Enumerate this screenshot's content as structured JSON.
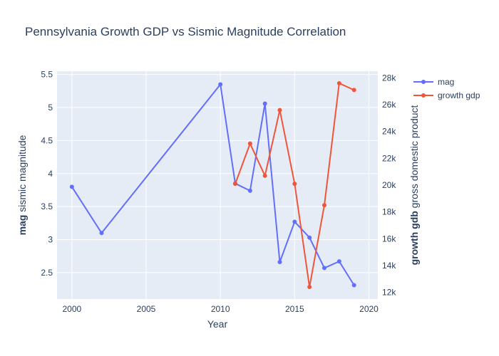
{
  "chart_data": {
    "type": "line",
    "title": "Pennsylvania Growth GDP vs Sismic Magnitude Correlation",
    "xlabel": "Year",
    "ylabel": {
      "bold": "mag",
      "rest": " sismic magnitude"
    },
    "y2label": {
      "bold": "growth gdb",
      "rest": " gross domestic product"
    },
    "xlim": [
      1999.0,
      2020.6
    ],
    "ylim": [
      2.1,
      5.55
    ],
    "y2lim": [
      11500,
      28500
    ],
    "xticks": [
      2000,
      2005,
      2010,
      2015,
      2020
    ],
    "yticks": [
      2.5,
      3,
      3.5,
      4,
      4.5,
      5,
      5.5
    ],
    "ytick_labels": [
      "2.5",
      "3",
      "3.5",
      "4",
      "4.5",
      "5",
      "5.5"
    ],
    "y2ticks": [
      12000,
      14000,
      16000,
      18000,
      20000,
      22000,
      24000,
      26000,
      28000
    ],
    "y2tick_labels": [
      "12k",
      "14k",
      "16k",
      "18k",
      "20k",
      "22k",
      "24k",
      "26k",
      "28k"
    ],
    "grid": true,
    "legend_position": "top-right",
    "series": [
      {
        "name": "mag",
        "axis": "y",
        "color": "#636efa",
        "x": [
          2000,
          2002,
          2010,
          2011,
          2012,
          2013,
          2014,
          2015,
          2016,
          2017,
          2018,
          2019
        ],
        "y": [
          3.8,
          3.1,
          5.35,
          3.85,
          3.74,
          5.06,
          2.66,
          3.27,
          3.03,
          2.57,
          2.67,
          2.31
        ]
      },
      {
        "name": "growth gdp",
        "axis": "y2",
        "color": "#ef553b",
        "x": [
          2011,
          2012,
          2013,
          2014,
          2015,
          2016,
          2017,
          2018,
          2019
        ],
        "y": [
          20100,
          23100,
          20700,
          25600,
          20100,
          12400,
          18500,
          27600,
          27100
        ]
      }
    ]
  }
}
